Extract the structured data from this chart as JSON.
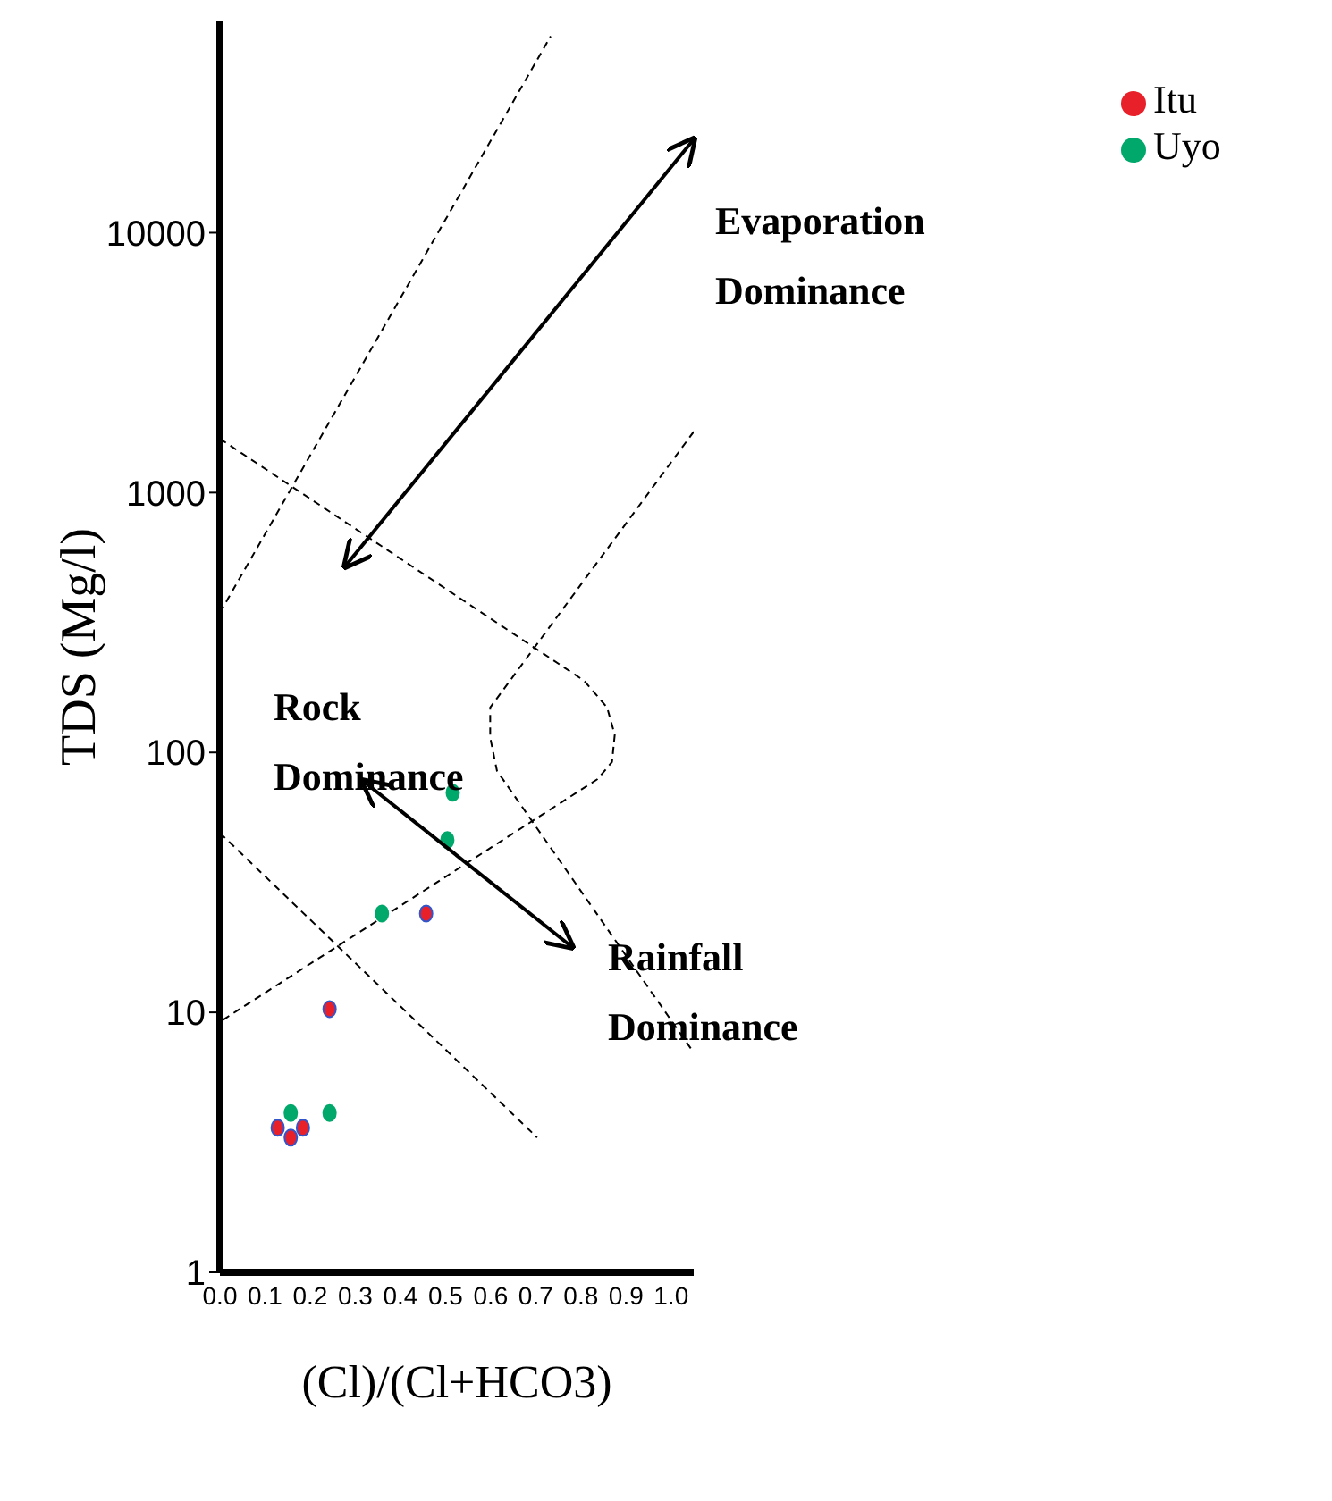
{
  "chart_data": {
    "type": "scatter",
    "xlabel": "(Cl)/(Cl+HCO3)",
    "ylabel": "TDS (Mg/l)",
    "log": "y",
    "xlim": [
      0,
      1.05
    ],
    "ylim": [
      1,
      65000
    ],
    "xticks": [
      {
        "value": 0,
        "label": "0.0"
      },
      {
        "value": 0.1,
        "label": "0.1"
      },
      {
        "value": 0.2,
        "label": "0.2"
      },
      {
        "value": 0.3,
        "label": "0.3"
      },
      {
        "value": 0.4,
        "label": "0.4"
      },
      {
        "value": 0.5,
        "label": "0.5"
      },
      {
        "value": 0.6,
        "label": "0.6"
      },
      {
        "value": 0.7,
        "label": "0.7"
      },
      {
        "value": 0.8,
        "label": "0.8"
      },
      {
        "value": 0.9,
        "label": "0.9"
      },
      {
        "value": 1,
        "label": "1.0"
      }
    ],
    "yticks": [
      1,
      10,
      100,
      1000,
      10000
    ],
    "legend": "top right",
    "marker": "circle",
    "annotations": [
      "Evaporation Dominance",
      "Rock Dominance",
      "Rainfall Dominance"
    ],
    "series": [
      {
        "name": "Itu",
        "color": "#e8202a",
        "x": [
          0.128,
          0.157,
          0.184,
          0.243,
          0.457
        ],
        "values": [
          3.6,
          3.3,
          3.6,
          10.3,
          24
        ]
      },
      {
        "name": "Uyo",
        "color": "#00a86b",
        "x": [
          0.157,
          0.243,
          0.359,
          0.504,
          0.516
        ],
        "values": [
          4.1,
          4.1,
          24,
          46,
          70
        ]
      },
      {
        "type": "line",
        "color": "#000000",
        "line_style": "dashed",
        "marker": "none",
        "x": [
          0,
          0.733
        ],
        "values": [
          345,
          57000
        ]
      },
      {
        "type": "line",
        "color": "#000000",
        "line_style": "dashed",
        "marker": "none",
        "x": [
          0,
          0.807,
          0.858,
          0.875,
          0.869,
          0.837,
          0
        ],
        "values": [
          1611,
          189,
          149,
          117,
          92,
          79,
          9.2
        ]
      },
      {
        "type": "line",
        "color": "#000000",
        "line_style": "dashed",
        "marker": "none",
        "x": [
          1.05,
          0.599,
          0.599,
          0.614,
          1.05
        ],
        "values": [
          1715,
          149,
          114,
          85,
          7
        ]
      },
      {
        "type": "line",
        "color": "#000000",
        "line_style": "dashed",
        "marker": "none",
        "x": [
          0,
          0.703
        ],
        "values": [
          49,
          3.3
        ]
      }
    ]
  }
}
